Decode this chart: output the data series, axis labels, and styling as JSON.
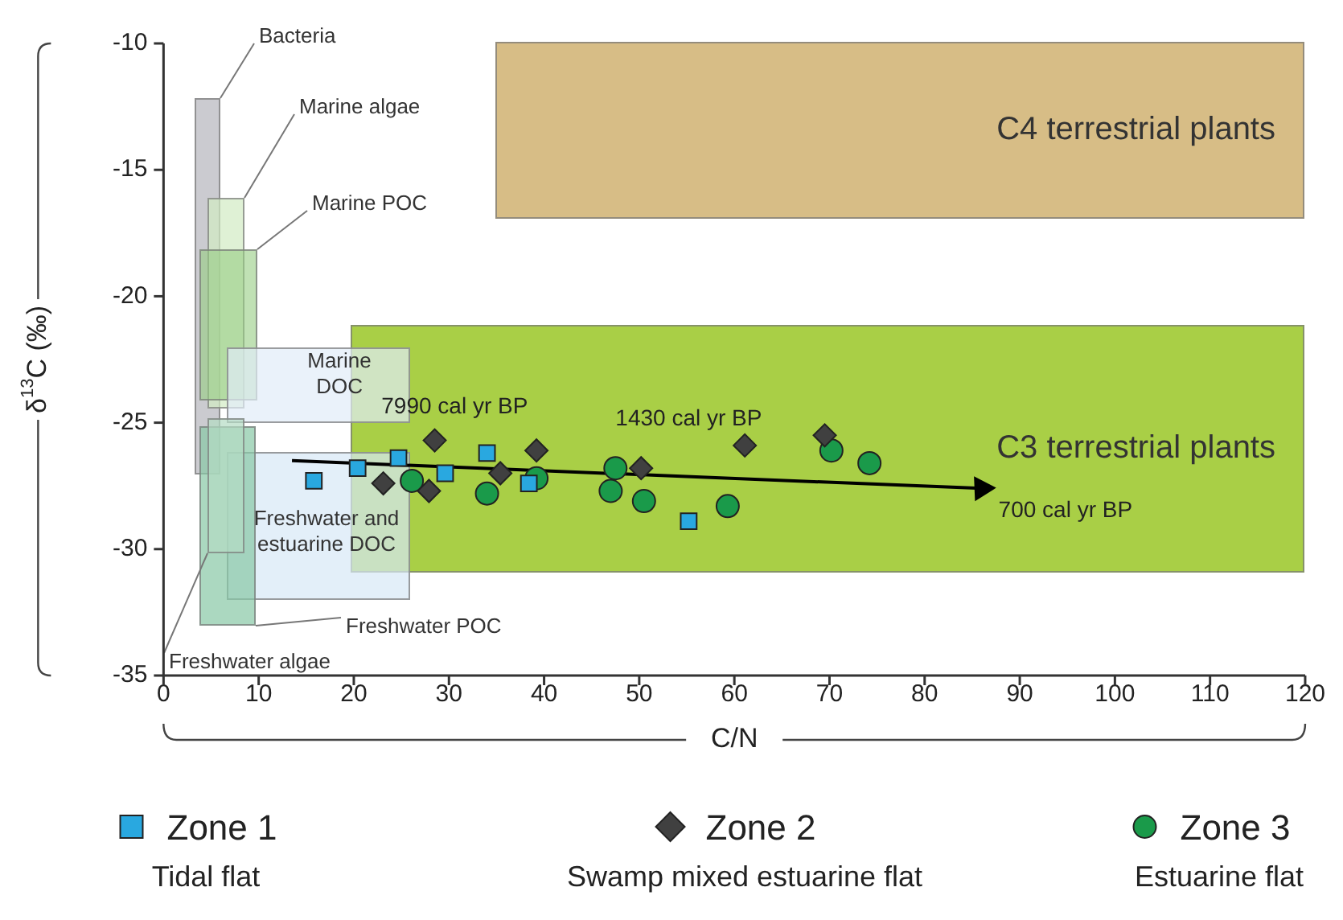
{
  "chart_data": {
    "type": "scatter",
    "xlabel": "C/N",
    "ylabel": "δ$^{13}$C (‰)",
    "xlim": [
      0,
      120
    ],
    "xticks": [
      0,
      10,
      20,
      30,
      40,
      50,
      60,
      70,
      80,
      90,
      100,
      110,
      120
    ],
    "ylim": [
      -35,
      -10
    ],
    "yticks": [
      -35,
      -30,
      -25,
      -20,
      -15,
      -10
    ],
    "grid": false,
    "legend": "bottom",
    "annotations": [
      "C4 terrestrial plants",
      "C3 terrestrial plants",
      "Bacteria",
      "Marine algae",
      "Marine POC",
      "Marine\nDOC",
      "Freshwater and\nestuarine DOC",
      "Freshwater POC",
      "Freshwater algae",
      "7990 cal yr BP",
      "1430 cal yr BP",
      "700 cal yr BP",
      "Tidal flat",
      "Swamp mixed estuarine flat",
      "Estuarine flat"
    ],
    "series": [
      {
        "name": "Zone 1",
        "type": "scatter",
        "marker": "square",
        "color": "#29a8e0",
        "x": [
          15.8,
          20.4,
          24.7,
          29.6,
          34.0,
          38.4,
          55.2
        ],
        "values": [
          -27.3,
          -26.8,
          -26.4,
          -27.0,
          -26.2,
          -27.4,
          -28.9
        ]
      },
      {
        "name": "Zone 2",
        "type": "scatter",
        "marker": "diamond",
        "color": "#404040",
        "x": [
          28.5,
          23.1,
          27.9,
          35.4,
          39.2,
          50.2,
          61.1,
          69.5
        ],
        "values": [
          -25.7,
          -27.4,
          -27.7,
          -27.0,
          -26.1,
          -26.8,
          -25.9,
          -25.5
        ]
      },
      {
        "name": "Zone 3",
        "type": "scatter",
        "marker": "circle",
        "color": "#1a9a4a",
        "x": [
          26.1,
          34.0,
          39.2,
          47.5,
          47.0,
          50.5,
          59.3,
          70.2,
          74.2
        ],
        "values": [
          -27.3,
          -27.8,
          -27.2,
          -26.8,
          -27.7,
          -28.1,
          -28.3,
          -26.1,
          -26.6
        ]
      },
      {
        "type": "line",
        "line_style": "solid",
        "color": "#000000",
        "x": [
          13.5,
          86
        ],
        "values": [
          -26.5,
          -27.6
        ]
      }
    ]
  }
}
